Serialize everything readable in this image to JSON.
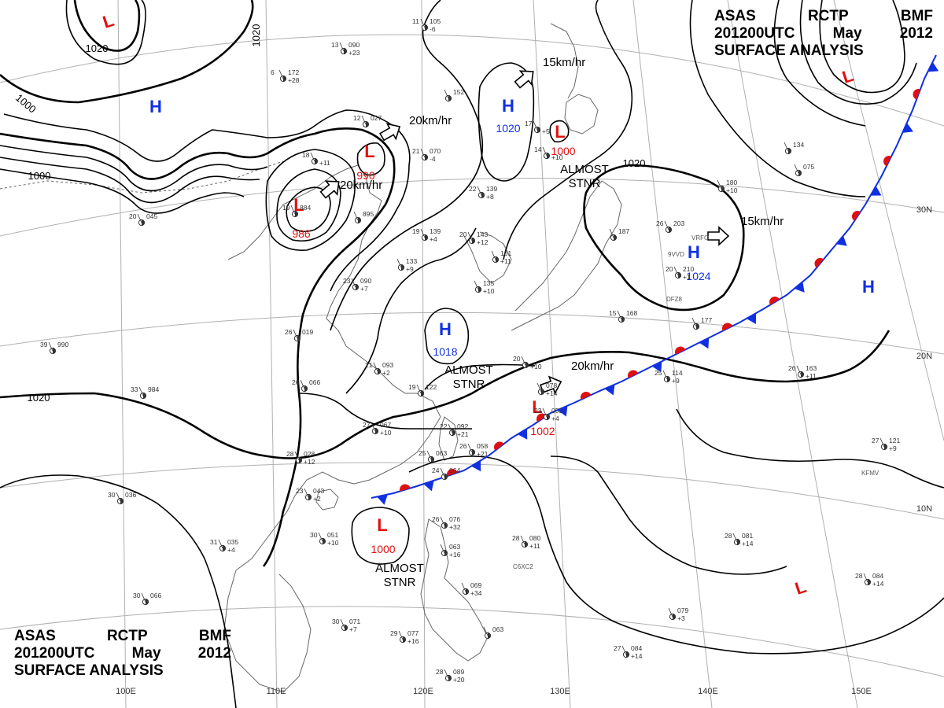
{
  "header": {
    "line1": [
      "ASAS",
      "RCTP",
      "BMF"
    ],
    "line2": [
      "201200UTC",
      "May",
      "2012"
    ],
    "line3": "SURFACE  ANALYSIS"
  },
  "colors": {
    "high": "#1030e0",
    "low": "#e01010",
    "cold_front": "#1030e0",
    "warm_front": "#e01010",
    "isobar": "#000000",
    "coastline": "#666666",
    "grid": "#aaaaaa"
  },
  "grid": {
    "lon_labels": [
      "100E",
      "110E",
      "120E",
      "130E",
      "140E",
      "150E"
    ],
    "lat_labels": [
      "30N",
      "20N",
      "10N"
    ]
  },
  "systems": [
    {
      "type": "L",
      "pressure": ""
    },
    {
      "type": "H",
      "pressure": ""
    },
    {
      "type": "L",
      "pressure": "990"
    },
    {
      "type": "L",
      "pressure": "986"
    },
    {
      "type": "H",
      "pressure": "1020"
    },
    {
      "type": "L",
      "pressure": "1000"
    },
    {
      "type": "L",
      "pressure": ""
    },
    {
      "type": "H",
      "pressure": "1024"
    },
    {
      "type": "H",
      "pressure": ""
    },
    {
      "type": "H",
      "pressure": "1018"
    },
    {
      "type": "L",
      "pressure": "1002"
    },
    {
      "type": "L",
      "pressure": "1000"
    },
    {
      "type": "L",
      "pressure": ""
    }
  ],
  "isobar_labels": [
    "1020",
    "1020",
    "1000",
    "1000",
    "1020"
  ],
  "motions": [
    {
      "text": "20km/hr"
    },
    {
      "text": "20km/hr"
    },
    {
      "text": "15km/hr"
    },
    {
      "text": "15km/hr"
    },
    {
      "text": "20km/hr"
    }
  ],
  "notes": [
    {
      "line1": "ALMOST",
      "line2": "STNR"
    },
    {
      "line1": "ALMOST",
      "line2": "STNR"
    },
    {
      "line1": "ALMOST",
      "line2": "STNR"
    }
  ],
  "stations": [
    {
      "temp": "11",
      "p": "105",
      "t": "-6"
    },
    {
      "temp": "13",
      "p": "090",
      "t": "+23"
    },
    {
      "temp": "6",
      "p": "172",
      "t": "+28"
    },
    {
      "temp": "",
      "p": "152",
      "t": ""
    },
    {
      "temp": "12",
      "p": "027",
      "t": ""
    },
    {
      "temp": "18",
      "p": "",
      "t": "+11"
    },
    {
      "temp": "21",
      "p": "070",
      "t": "-4"
    },
    {
      "temp": "22",
      "p": "139",
      "t": "+8"
    },
    {
      "temp": "17",
      "p": "",
      "t": "+5"
    },
    {
      "temp": "14",
      "p": "",
      "t": "+10"
    },
    {
      "temp": "19",
      "p": "884",
      "t": ""
    },
    {
      "temp": "",
      "p": "895",
      "t": ""
    },
    {
      "temp": "20",
      "p": "045",
      "t": ""
    },
    {
      "temp": "19",
      "p": "139",
      "t": "+4"
    },
    {
      "temp": "20",
      "p": "143",
      "t": "+12"
    },
    {
      "temp": "",
      "p": "133",
      "t": "+9"
    },
    {
      "temp": "",
      "p": "161",
      "t": "+11"
    },
    {
      "temp": "",
      "p": "135",
      "t": "+10"
    },
    {
      "temp": "23",
      "p": "090",
      "t": "+7"
    },
    {
      "temp": "26",
      "p": "019",
      "t": ""
    },
    {
      "temp": "39",
      "p": "990",
      "t": ""
    },
    {
      "temp": "33",
      "p": "984",
      "t": ""
    },
    {
      "temp": "21",
      "p": "093",
      "t": "+2"
    },
    {
      "temp": "26",
      "p": "066",
      "t": ""
    },
    {
      "temp": "19",
      "p": "122",
      "t": ""
    },
    {
      "temp": "27",
      "p": "067",
      "t": "+10"
    },
    {
      "temp": "22",
      "p": "092",
      "t": "+21"
    },
    {
      "temp": "26",
      "p": "058",
      "t": "+21"
    },
    {
      "temp": "25",
      "p": "063",
      "t": ""
    },
    {
      "temp": "24",
      "p": "064",
      "t": ""
    },
    {
      "temp": "28",
      "p": "028",
      "t": "+12"
    },
    {
      "temp": "23",
      "p": "043",
      "t": "+2"
    },
    {
      "temp": "30",
      "p": "036",
      "t": ""
    },
    {
      "temp": "31",
      "p": "035",
      "t": "+4"
    },
    {
      "temp": "30",
      "p": "051",
      "t": "+10"
    },
    {
      "temp": "26",
      "p": "076",
      "t": "+32"
    },
    {
      "temp": "",
      "p": "063",
      "t": "+16"
    },
    {
      "temp": "28",
      "p": "080",
      "t": "+11"
    },
    {
      "temp": "30",
      "p": "066",
      "t": ""
    },
    {
      "temp": "30",
      "p": "071",
      "t": "+7"
    },
    {
      "temp": "29",
      "p": "077",
      "t": "+16"
    },
    {
      "temp": "",
      "p": "069",
      "t": "+34"
    },
    {
      "temp": "",
      "p": "063",
      "t": ""
    },
    {
      "temp": "28",
      "p": "089",
      "t": "+20"
    },
    {
      "temp": "27",
      "p": "084",
      "t": "+14"
    },
    {
      "temp": "28",
      "p": "081",
      "t": "+14"
    },
    {
      "temp": "28",
      "p": "084",
      "t": "+14"
    },
    {
      "temp": "",
      "p": "079",
      "t": "+3"
    },
    {
      "temp": "27",
      "p": "121",
      "t": "+9"
    },
    {
      "temp": "26",
      "p": "163",
      "t": "+11"
    },
    {
      "temp": "25",
      "p": "114",
      "t": "+9"
    },
    {
      "temp": "",
      "p": "177",
      "t": ""
    },
    {
      "temp": "15",
      "p": "168",
      "t": ""
    },
    {
      "temp": "26",
      "p": "203",
      "t": ""
    },
    {
      "temp": "20",
      "p": "210",
      "t": "+1"
    },
    {
      "temp": "",
      "p": "180",
      "t": "+10"
    },
    {
      "temp": "",
      "p": "134",
      "t": ""
    },
    {
      "temp": "",
      "p": "187",
      "t": ""
    },
    {
      "temp": "",
      "p": "075",
      "t": ""
    },
    {
      "temp": "20",
      "p": "",
      "t": "+10"
    },
    {
      "temp": "",
      "p": "078",
      "t": "+14"
    },
    {
      "temp": "23",
      "p": "053",
      "t": "+4"
    }
  ],
  "ship_ids": [
    "VRFO",
    "9VVD",
    "DFZ8",
    "C6XC2",
    "KFMV"
  ]
}
